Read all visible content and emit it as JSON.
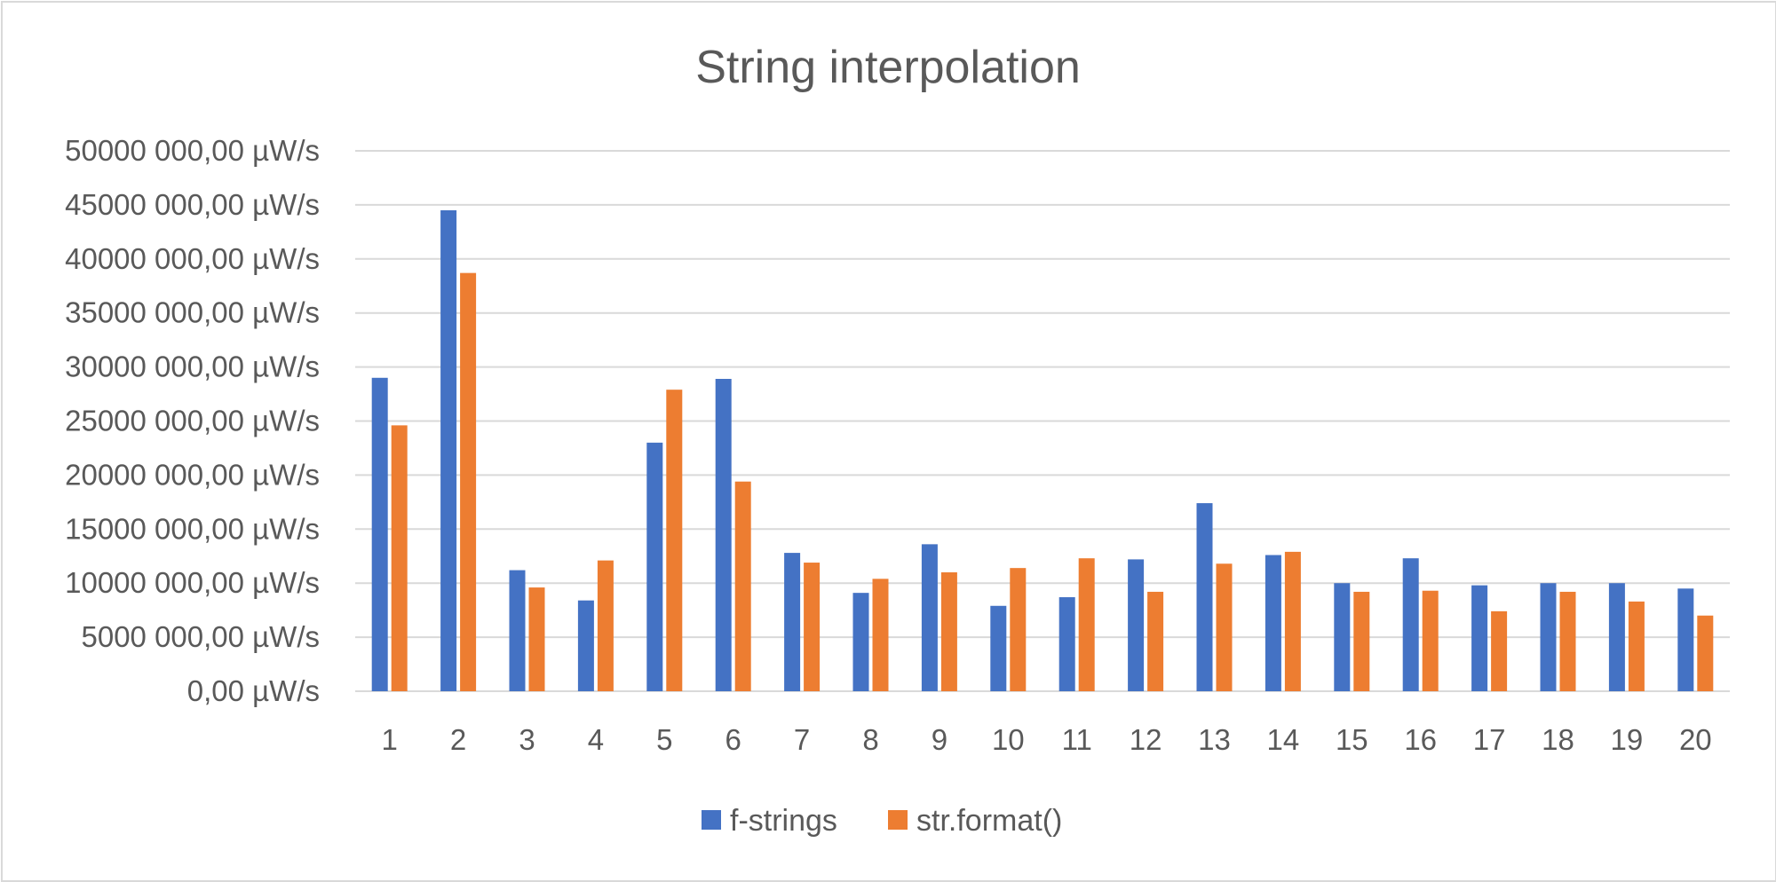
{
  "chart_data": {
    "type": "bar",
    "title": "String interpolation",
    "xlabel": "",
    "ylabel": "",
    "categories": [
      "1",
      "2",
      "3",
      "4",
      "5",
      "6",
      "7",
      "8",
      "9",
      "10",
      "11",
      "12",
      "13",
      "14",
      "15",
      "16",
      "17",
      "18",
      "19",
      "20"
    ],
    "series": [
      {
        "name": "f-strings",
        "color": "#4472C4",
        "values": [
          29000000,
          44500000,
          11200000,
          8400000,
          23000000,
          28900000,
          12800000,
          9100000,
          13600000,
          7900000,
          8700000,
          12200000,
          17400000,
          12600000,
          10000000,
          12300000,
          9800000,
          10000000,
          10000000,
          9500000
        ]
      },
      {
        "name": "str.format()",
        "color": "#ED7D31",
        "values": [
          24600000,
          38700000,
          9600000,
          12100000,
          27900000,
          19400000,
          11900000,
          10400000,
          11000000,
          11400000,
          12300000,
          9200000,
          11800000,
          12900000,
          9200000,
          9300000,
          7400000,
          9200000,
          8300000,
          7000000
        ]
      }
    ],
    "ylim": [
      0,
      50000000
    ],
    "y_ticks": [
      {
        "value": 0,
        "label": "0,00 µW/s"
      },
      {
        "value": 5000000,
        "label": "5000 000,00 µW/s"
      },
      {
        "value": 10000000,
        "label": "10000 000,00 µW/s"
      },
      {
        "value": 15000000,
        "label": "15000 000,00 µW/s"
      },
      {
        "value": 20000000,
        "label": "20000 000,00 µW/s"
      },
      {
        "value": 25000000,
        "label": "25000 000,00 µW/s"
      },
      {
        "value": 30000000,
        "label": "30000 000,00 µW/s"
      },
      {
        "value": 35000000,
        "label": "35000 000,00 µW/s"
      },
      {
        "value": 40000000,
        "label": "40000 000,00 µW/s"
      },
      {
        "value": 45000000,
        "label": "45000 000,00 µW/s"
      },
      {
        "value": 50000000,
        "label": "50000 000,00 µW/s"
      }
    ],
    "grid": true,
    "legend_position": "bottom",
    "gridline_color": "#d9d9d9",
    "text_color": "#595959"
  }
}
